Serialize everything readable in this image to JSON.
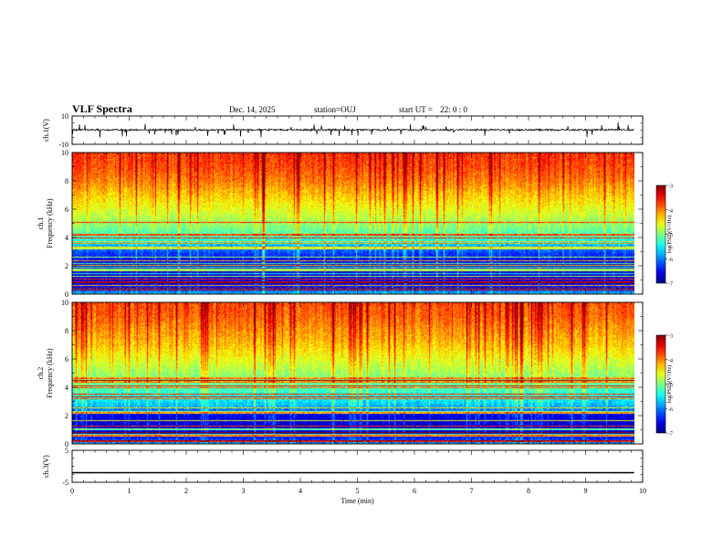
{
  "header": {
    "title": "VLF Spectra",
    "date": "Dec. 14, 2025",
    "station": "station=OUJ",
    "start_label": "start  UT =",
    "start_time": "22: 0  : 0"
  },
  "chart_data": {
    "type": "heatmap",
    "xlabel": "Time  (min)",
    "x_range": [
      0,
      10
    ],
    "x_ticks": [
      "0",
      "1",
      "2",
      "3",
      "4",
      "5",
      "6",
      "7",
      "8",
      "9",
      "10"
    ],
    "data_end_min": 9.85,
    "panels": [
      {
        "id": "ch1-waveform",
        "type": "line",
        "ylabel": "ch.1(V)",
        "ylim": [
          -10,
          10
        ],
        "y_ticks": [
          "10",
          "-10"
        ],
        "baseline": 0.2,
        "noise_amplitude": 1.2,
        "spike_amplitude": 3.5
      },
      {
        "id": "ch1-spectrogram",
        "type": "heatmap",
        "ylabel_channel": "ch.1",
        "ylabel": "Frequency  (kHz)",
        "ylim": [
          0,
          10
        ],
        "y_ticks": [
          "0",
          "2",
          "4",
          "6",
          "8",
          "10"
        ],
        "colorbar": {
          "label": "log(PSD)(V²/Hz)",
          "range": [
            -7,
            -3
          ],
          "ticks": [
            "-3",
            "-4",
            "-5",
            "-6",
            "-7"
          ]
        },
        "spectrum_profile_kHz": [
          0,
          0.5,
          1,
          2,
          3,
          3.5,
          4,
          5,
          6,
          7,
          8,
          9,
          10
        ],
        "spectrum_profile_logPSD": [
          -5.8,
          -6.5,
          -6.6,
          -6.7,
          -6.2,
          -5.7,
          -5.3,
          -4.9,
          -4.6,
          -4.3,
          -4.0,
          -3.8,
          -3.7
        ]
      },
      {
        "id": "ch2-spectrogram",
        "type": "heatmap",
        "ylabel_channel": "ch.2",
        "ylabel": "Frequency  (kHz)",
        "ylim": [
          0,
          10
        ],
        "y_ticks": [
          "0",
          "2",
          "4",
          "6",
          "8",
          "10"
        ],
        "colorbar": {
          "label": "log(PSD)(V²/Hz)",
          "range": [
            -7,
            -3
          ],
          "ticks": [
            "-3",
            "-4",
            "-5",
            "-6",
            "-7"
          ]
        },
        "spectrum_profile_kHz": [
          0,
          0.5,
          1,
          2,
          2.5,
          3,
          4,
          5,
          6,
          7,
          8,
          9,
          10
        ],
        "spectrum_profile_logPSD": [
          -5.9,
          -6.6,
          -6.7,
          -6.6,
          -5.9,
          -5.6,
          -5.2,
          -4.9,
          -4.6,
          -4.3,
          -4.1,
          -3.9,
          -3.8
        ]
      },
      {
        "id": "ch3-waveform",
        "type": "line",
        "ylabel": "ch.3(V)",
        "ylim": [
          -5,
          5
        ],
        "y_ticks": [
          "5",
          "-5"
        ],
        "constant_value": -2
      }
    ]
  }
}
